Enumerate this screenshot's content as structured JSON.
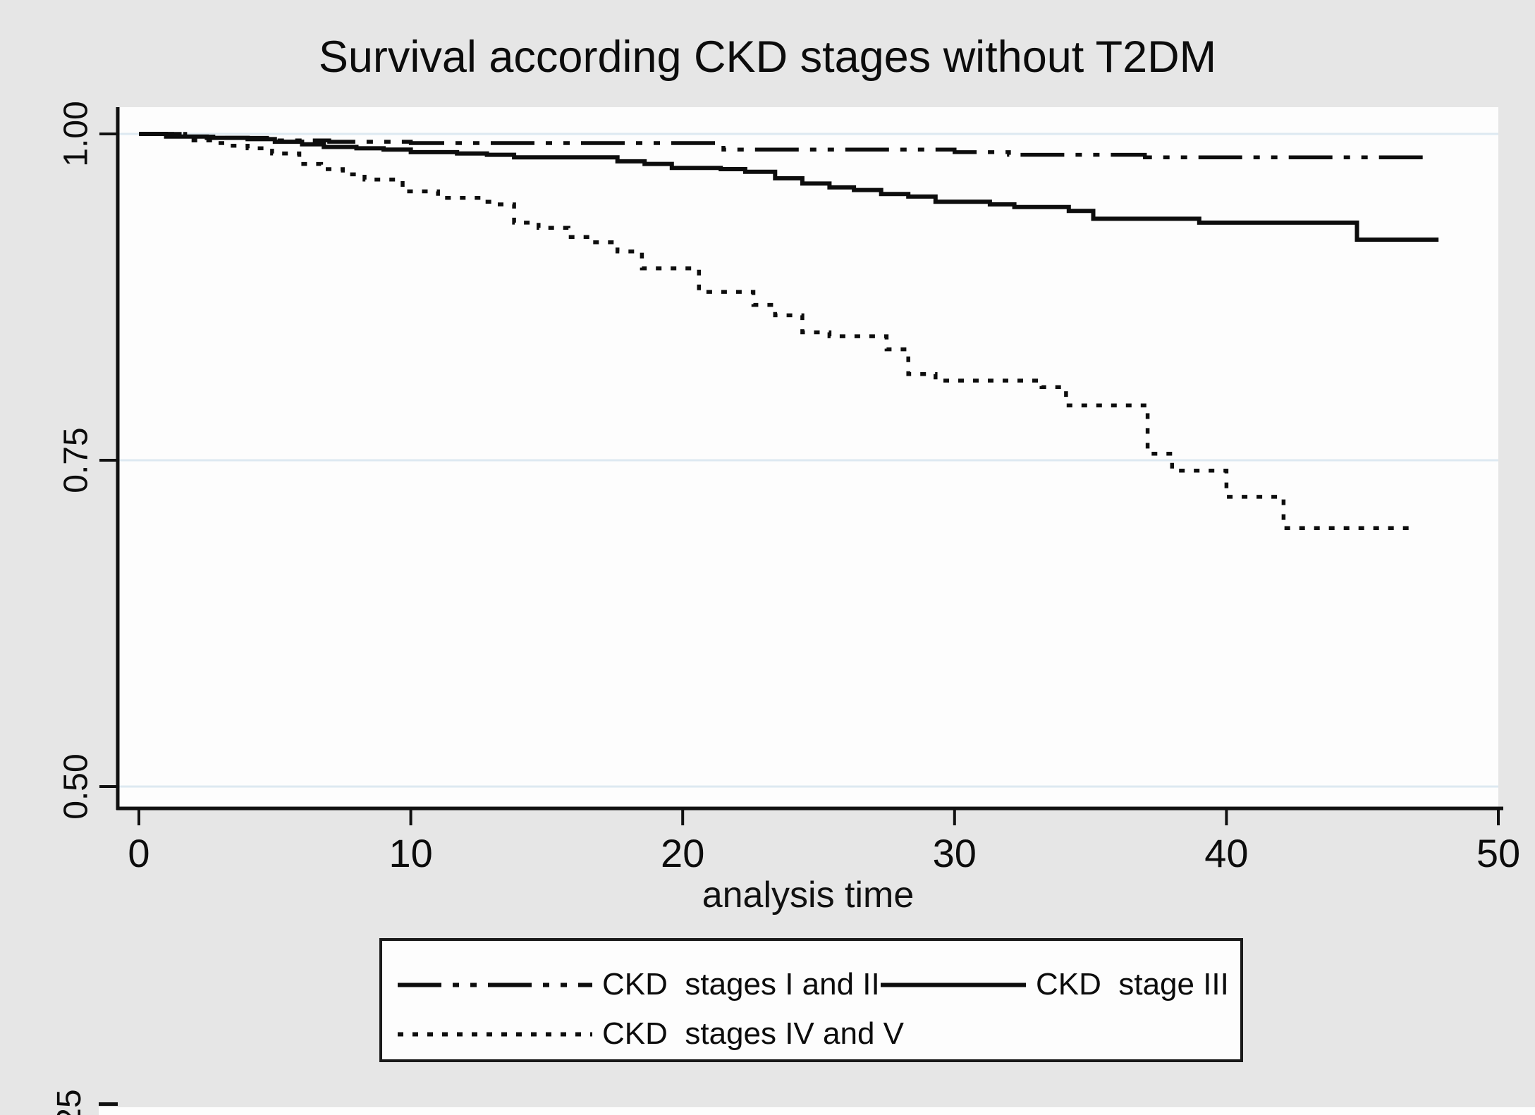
{
  "title": "Survival according CKD stages without T2DM",
  "chart_data": {
    "type": "line",
    "subtype": "kaplan_meier_step",
    "title": "Survival according CKD stages without T2DM",
    "xlabel": "analysis time",
    "ylabel": "",
    "xlim": [
      0,
      50
    ],
    "x_ticks": [
      0,
      10,
      20,
      30,
      40,
      50
    ],
    "y_ticks": [
      {
        "value": 1.0,
        "label": "1.00"
      },
      {
        "value": 0.75,
        "label": "0.75"
      },
      {
        "value": 0.5,
        "label": "0.50"
      }
    ],
    "ylim_visible": [
      0.483,
      1.02
    ],
    "grid": true,
    "gridline_color": "#dde9f1",
    "plot_background": "#fdfdfd",
    "page_background": "#e6e6e6",
    "line_color": "#0d0d0d",
    "cropped_bottom_tick_label": "25",
    "legend_position": "below-center",
    "series": [
      {
        "name": "CKD  stages I and II",
        "style": "dashdot",
        "end": 47.4,
        "points": [
          [
            0,
            1.0
          ],
          [
            1.5,
            0.998
          ],
          [
            3,
            0.997
          ],
          [
            5,
            0.995
          ],
          [
            7,
            0.994
          ],
          [
            10,
            0.993
          ],
          [
            21.5,
            0.988
          ],
          [
            30,
            0.986
          ],
          [
            32,
            0.984
          ],
          [
            37,
            0.982
          ]
        ]
      },
      {
        "name": "CKD  stage III",
        "style": "solid",
        "end": 47.8,
        "points": [
          [
            0,
            1.0
          ],
          [
            1,
            0.998
          ],
          [
            2.5,
            0.997
          ],
          [
            4,
            0.996
          ],
          [
            5,
            0.994
          ],
          [
            6,
            0.992
          ],
          [
            6.8,
            0.99
          ],
          [
            8,
            0.989
          ],
          [
            9,
            0.988
          ],
          [
            10,
            0.986
          ],
          [
            11.7,
            0.985
          ],
          [
            12.8,
            0.984
          ],
          [
            13.8,
            0.982
          ],
          [
            17.6,
            0.979
          ],
          [
            18.6,
            0.977
          ],
          [
            19.6,
            0.974
          ],
          [
            21.4,
            0.973
          ],
          [
            22.3,
            0.971
          ],
          [
            23.4,
            0.966
          ],
          [
            24.4,
            0.962
          ],
          [
            25.4,
            0.959
          ],
          [
            26.3,
            0.957
          ],
          [
            27.3,
            0.954
          ],
          [
            28.3,
            0.952
          ],
          [
            29.3,
            0.948
          ],
          [
            31.3,
            0.946
          ],
          [
            32.2,
            0.944
          ],
          [
            34.2,
            0.941
          ],
          [
            35.1,
            0.935
          ],
          [
            39,
            0.932
          ],
          [
            44.8,
            0.919
          ]
        ]
      },
      {
        "name": "CKD  stages IV and V",
        "style": "dotted",
        "end": 47.0,
        "points": [
          [
            0,
            1.0
          ],
          [
            1.7,
            0.995
          ],
          [
            2.7,
            0.993
          ],
          [
            3.2,
            0.991
          ],
          [
            4,
            0.989
          ],
          [
            4.9,
            0.985
          ],
          [
            5.9,
            0.977
          ],
          [
            6.7,
            0.973
          ],
          [
            7.5,
            0.969
          ],
          [
            8.3,
            0.965
          ],
          [
            9.7,
            0.956
          ],
          [
            11,
            0.951
          ],
          [
            12.7,
            0.948
          ],
          [
            13.1,
            0.946
          ],
          [
            13.8,
            0.932
          ],
          [
            14.7,
            0.928
          ],
          [
            15.8,
            0.921
          ],
          [
            16.7,
            0.917
          ],
          [
            17.6,
            0.91
          ],
          [
            18.5,
            0.897
          ],
          [
            20.6,
            0.879
          ],
          [
            22.6,
            0.869
          ],
          [
            23.4,
            0.861
          ],
          [
            24.4,
            0.848
          ],
          [
            25.4,
            0.845
          ],
          [
            27.5,
            0.835
          ],
          [
            28.3,
            0.816
          ],
          [
            29.3,
            0.811
          ],
          [
            33.2,
            0.806
          ],
          [
            34.1,
            0.792
          ],
          [
            37.1,
            0.755
          ],
          [
            38,
            0.742
          ],
          [
            40,
            0.722
          ],
          [
            42.1,
            0.698
          ]
        ]
      }
    ]
  }
}
